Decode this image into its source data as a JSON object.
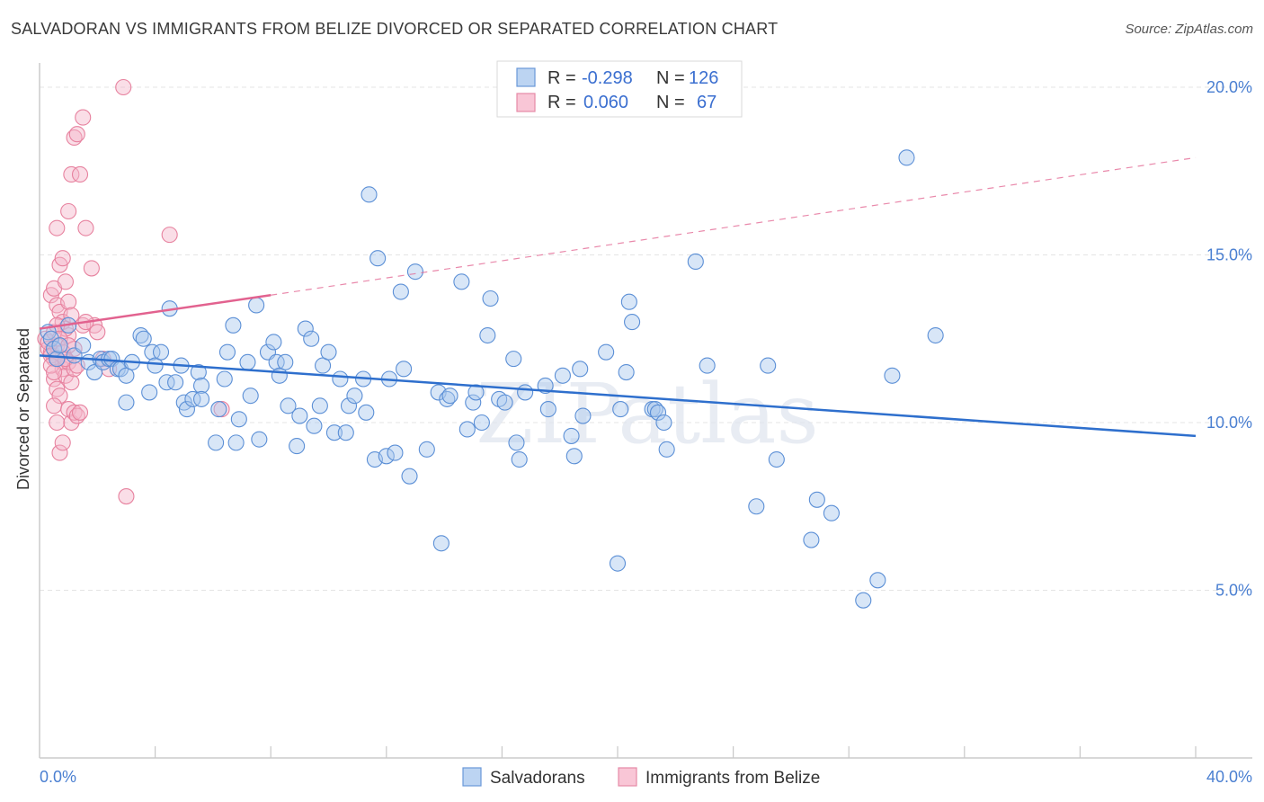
{
  "title": "SALVADORAN VS IMMIGRANTS FROM BELIZE DIVORCED OR SEPARATED CORRELATION CHART",
  "source": "Source: ZipAtlas.com",
  "watermark": "ZIPatlas",
  "colors": {
    "blue_fill": "#a9c8ee",
    "blue_stroke": "#5b8fd6",
    "blue_line": "#2e6fcd",
    "pink_fill": "#f5b6ca",
    "pink_stroke": "#e7829f",
    "pink_line": "#e2628f",
    "tick_label": "#4a7fd1",
    "grid": "#e4e4e4"
  },
  "legend": {
    "rows": [
      {
        "r_label": "R =",
        "r_value": "-0.298",
        "n_label": "N =",
        "n_value": "126"
      },
      {
        "r_label": "R =",
        "r_value": "0.060",
        "n_label": "N =",
        "n_value": "67"
      }
    ]
  },
  "bottom_legend": [
    "Salvadorans",
    "Immigrants from Belize"
  ],
  "chart_data": {
    "type": "scatter",
    "title": "SALVADORAN VS IMMIGRANTS FROM BELIZE DIVORCED OR SEPARATED CORRELATION CHART",
    "xlabel": "",
    "ylabel": "Divorced or Separated",
    "xlim": [
      0,
      40
    ],
    "ylim": [
      0,
      21
    ],
    "x_tick_labels": [
      "0.0%",
      "40.0%"
    ],
    "y_ticks": [
      5,
      10,
      15,
      20
    ],
    "y_tick_labels": [
      "5.0%",
      "10.0%",
      "15.0%",
      "20.0%"
    ],
    "grid": true,
    "legend_position": "top-center",
    "series": [
      {
        "name": "Salvadorans",
        "r": -0.298,
        "n": 126,
        "trend": {
          "x": [
            0.0,
            40.0
          ],
          "y": [
            12.0,
            9.6
          ],
          "style": "solid"
        },
        "points": [
          [
            0.3,
            12.7
          ],
          [
            0.4,
            12.5
          ],
          [
            0.5,
            12.2
          ],
          [
            0.6,
            11.9
          ],
          [
            0.7,
            12.3
          ],
          [
            1.0,
            12.9
          ],
          [
            1.2,
            12.0
          ],
          [
            1.5,
            12.3
          ],
          [
            1.7,
            11.8
          ],
          [
            1.9,
            11.5
          ],
          [
            2.1,
            11.9
          ],
          [
            2.2,
            11.8
          ],
          [
            2.4,
            11.9
          ],
          [
            2.5,
            11.9
          ],
          [
            2.7,
            11.6
          ],
          [
            2.8,
            11.6
          ],
          [
            3.0,
            11.4
          ],
          [
            3.0,
            10.6
          ],
          [
            3.2,
            11.8
          ],
          [
            3.5,
            12.6
          ],
          [
            3.6,
            12.5
          ],
          [
            3.8,
            10.9
          ],
          [
            3.9,
            12.1
          ],
          [
            4.0,
            11.7
          ],
          [
            4.2,
            12.1
          ],
          [
            4.4,
            11.2
          ],
          [
            4.5,
            13.4
          ],
          [
            4.7,
            11.2
          ],
          [
            4.9,
            11.7
          ],
          [
            5.0,
            10.6
          ],
          [
            5.1,
            10.4
          ],
          [
            5.3,
            10.7
          ],
          [
            5.5,
            11.5
          ],
          [
            5.6,
            11.1
          ],
          [
            5.6,
            10.7
          ],
          [
            6.1,
            9.4
          ],
          [
            6.2,
            10.4
          ],
          [
            6.4,
            11.3
          ],
          [
            6.5,
            12.1
          ],
          [
            6.7,
            12.9
          ],
          [
            6.8,
            9.4
          ],
          [
            6.9,
            10.1
          ],
          [
            7.2,
            11.8
          ],
          [
            7.3,
            10.8
          ],
          [
            7.5,
            13.5
          ],
          [
            7.6,
            9.5
          ],
          [
            7.9,
            12.1
          ],
          [
            8.1,
            12.4
          ],
          [
            8.2,
            11.8
          ],
          [
            8.3,
            11.4
          ],
          [
            8.5,
            11.8
          ],
          [
            8.6,
            10.5
          ],
          [
            8.9,
            9.3
          ],
          [
            9.0,
            10.2
          ],
          [
            9.2,
            12.8
          ],
          [
            9.4,
            12.5
          ],
          [
            9.5,
            9.9
          ],
          [
            9.7,
            10.5
          ],
          [
            9.8,
            11.7
          ],
          [
            10.0,
            12.1
          ],
          [
            10.2,
            9.7
          ],
          [
            10.4,
            11.3
          ],
          [
            10.6,
            9.7
          ],
          [
            10.7,
            10.5
          ],
          [
            10.9,
            10.8
          ],
          [
            11.2,
            11.3
          ],
          [
            11.3,
            10.3
          ],
          [
            11.4,
            16.8
          ],
          [
            11.6,
            8.9
          ],
          [
            11.7,
            14.9
          ],
          [
            12.0,
            9.0
          ],
          [
            12.1,
            11.3
          ],
          [
            12.3,
            9.1
          ],
          [
            12.5,
            13.9
          ],
          [
            12.6,
            11.6
          ],
          [
            12.8,
            8.4
          ],
          [
            13.0,
            14.5
          ],
          [
            13.4,
            9.2
          ],
          [
            13.8,
            10.9
          ],
          [
            13.9,
            6.4
          ],
          [
            14.1,
            10.7
          ],
          [
            14.2,
            10.8
          ],
          [
            14.6,
            14.2
          ],
          [
            14.8,
            9.8
          ],
          [
            15.0,
            10.6
          ],
          [
            15.1,
            10.9
          ],
          [
            15.3,
            10.0
          ],
          [
            15.5,
            12.6
          ],
          [
            15.6,
            13.7
          ],
          [
            15.9,
            10.7
          ],
          [
            16.1,
            10.6
          ],
          [
            16.4,
            11.9
          ],
          [
            16.5,
            9.4
          ],
          [
            16.6,
            8.9
          ],
          [
            16.8,
            10.9
          ],
          [
            17.5,
            11.1
          ],
          [
            17.6,
            10.4
          ],
          [
            18.1,
            11.4
          ],
          [
            18.4,
            9.6
          ],
          [
            18.5,
            9.0
          ],
          [
            18.7,
            11.6
          ],
          [
            18.8,
            10.2
          ],
          [
            19.6,
            12.1
          ],
          [
            20.0,
            5.8
          ],
          [
            20.1,
            10.4
          ],
          [
            20.3,
            11.5
          ],
          [
            20.4,
            13.6
          ],
          [
            20.5,
            13.0
          ],
          [
            21.2,
            10.4
          ],
          [
            21.3,
            10.4
          ],
          [
            21.4,
            10.3
          ],
          [
            21.6,
            10.0
          ],
          [
            21.7,
            9.2
          ],
          [
            22.7,
            14.8
          ],
          [
            23.1,
            11.7
          ],
          [
            24.8,
            7.5
          ],
          [
            25.2,
            11.7
          ],
          [
            25.5,
            8.9
          ],
          [
            26.7,
            6.5
          ],
          [
            26.9,
            7.7
          ],
          [
            27.4,
            7.3
          ],
          [
            28.5,
            4.7
          ],
          [
            29.0,
            5.3
          ],
          [
            29.5,
            11.4
          ],
          [
            30.0,
            17.9
          ],
          [
            31.0,
            12.6
          ]
        ]
      },
      {
        "name": "Immigrants from Belize",
        "r": 0.06,
        "n": 67,
        "trend": {
          "x": [
            0.0,
            8.0
          ],
          "y": [
            12.8,
            13.8
          ],
          "style": "solid",
          "extended": {
            "x": [
              8.0,
              40.0
            ],
            "y": [
              13.8,
              17.9
            ],
            "style": "dashed"
          }
        },
        "points": [
          [
            0.2,
            12.5
          ],
          [
            0.3,
            12.2
          ],
          [
            0.4,
            12.1
          ],
          [
            0.5,
            11.9
          ],
          [
            0.6,
            12.3
          ],
          [
            0.8,
            11.8
          ],
          [
            1.0,
            12.6
          ],
          [
            1.2,
            12.2
          ],
          [
            0.4,
            13.8
          ],
          [
            0.5,
            14.0
          ],
          [
            0.6,
            13.5
          ],
          [
            0.7,
            13.3
          ],
          [
            0.8,
            13.0
          ],
          [
            0.9,
            12.8
          ],
          [
            1.0,
            13.6
          ],
          [
            1.1,
            13.2
          ],
          [
            0.5,
            11.3
          ],
          [
            0.6,
            11.0
          ],
          [
            0.7,
            10.8
          ],
          [
            0.8,
            11.6
          ],
          [
            0.9,
            11.4
          ],
          [
            1.0,
            11.8
          ],
          [
            1.1,
            11.2
          ],
          [
            1.2,
            11.6
          ],
          [
            0.6,
            15.8
          ],
          [
            0.7,
            14.7
          ],
          [
            0.8,
            14.9
          ],
          [
            0.9,
            14.2
          ],
          [
            1.0,
            16.3
          ],
          [
            1.1,
            17.4
          ],
          [
            1.2,
            18.5
          ],
          [
            1.3,
            18.6
          ],
          [
            1.4,
            17.4
          ],
          [
            1.5,
            19.1
          ],
          [
            1.6,
            15.8
          ],
          [
            1.8,
            14.6
          ],
          [
            1.9,
            12.9
          ],
          [
            2.0,
            12.7
          ],
          [
            2.2,
            11.9
          ],
          [
            2.4,
            11.6
          ],
          [
            2.9,
            20.0
          ],
          [
            4.5,
            15.6
          ],
          [
            0.5,
            10.5
          ],
          [
            0.6,
            10.0
          ],
          [
            0.7,
            9.1
          ],
          [
            0.8,
            9.4
          ],
          [
            1.0,
            10.4
          ],
          [
            1.1,
            10.0
          ],
          [
            1.2,
            10.3
          ],
          [
            1.3,
            10.2
          ],
          [
            1.4,
            10.3
          ],
          [
            3.0,
            7.8
          ],
          [
            0.3,
            12.4
          ],
          [
            0.4,
            12.0
          ],
          [
            0.5,
            12.7
          ],
          [
            0.6,
            12.9
          ],
          [
            0.7,
            12.5
          ],
          [
            0.8,
            12.1
          ],
          [
            0.9,
            11.9
          ],
          [
            1.0,
            12.3
          ],
          [
            0.4,
            11.7
          ],
          [
            0.5,
            11.5
          ],
          [
            0.6,
            11.9
          ],
          [
            1.3,
            11.7
          ],
          [
            1.5,
            12.9
          ],
          [
            6.3,
            10.4
          ],
          [
            1.6,
            13.0
          ]
        ]
      }
    ]
  }
}
